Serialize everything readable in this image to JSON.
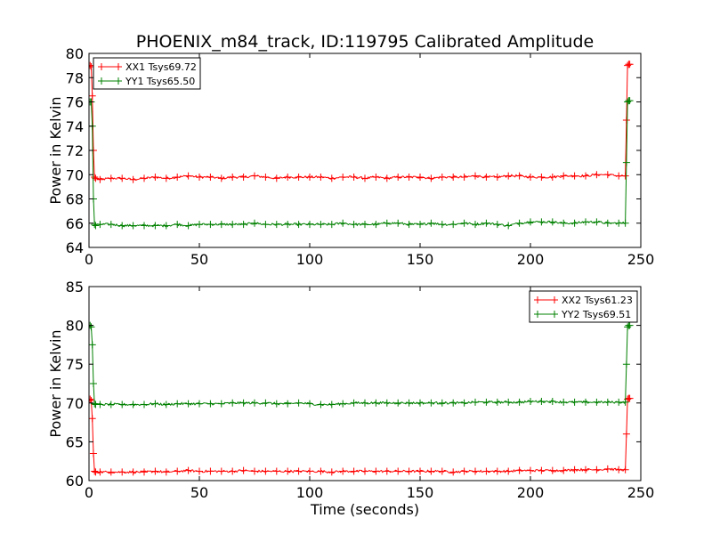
{
  "figure": {
    "title": "PHOENIX_m84_track, ID:119795 Calibrated Amplitude"
  },
  "chart_data": [
    {
      "type": "line",
      "title": "PHOENIX_m84_track, ID:119795 Calibrated Amplitude",
      "xlabel": "",
      "ylabel": "Power in Kelvin",
      "xlim": [
        0,
        250
      ],
      "ylim": [
        64,
        80
      ],
      "xticks": [
        "0",
        "50",
        "100",
        "150",
        "200",
        "250"
      ],
      "yticks": [
        "64",
        "66",
        "68",
        "70",
        "72",
        "74",
        "76",
        "78",
        "80"
      ],
      "xtick_values": [
        0,
        50,
        100,
        150,
        200,
        250
      ],
      "ytick_values": [
        64,
        66,
        68,
        70,
        72,
        74,
        76,
        78,
        80
      ],
      "grid": false,
      "legend_position": "top-left",
      "series": [
        {
          "name": "XX1 Tsys69.72",
          "color": "#ff0000",
          "marker": "plus",
          "x": [
            0,
            0.5,
            1,
            1.5,
            2,
            2.5,
            3,
            5,
            10,
            15,
            20,
            25,
            30,
            35,
            40,
            45,
            50,
            55,
            60,
            65,
            70,
            75,
            80,
            85,
            90,
            95,
            100,
            105,
            110,
            115,
            120,
            125,
            130,
            135,
            140,
            145,
            150,
            155,
            160,
            165,
            170,
            175,
            180,
            185,
            190,
            195,
            200,
            205,
            210,
            215,
            220,
            225,
            230,
            235,
            240,
            243,
            243.5,
            244,
            244.5,
            245
          ],
          "y": [
            78.9,
            79.0,
            78.9,
            76.5,
            72.0,
            69.8,
            69.7,
            69.6,
            69.7,
            69.7,
            69.6,
            69.7,
            69.8,
            69.7,
            69.8,
            69.9,
            69.8,
            69.8,
            69.7,
            69.8,
            69.8,
            69.9,
            69.8,
            69.7,
            69.8,
            69.8,
            69.8,
            69.8,
            69.7,
            69.8,
            69.8,
            69.7,
            69.8,
            69.7,
            69.8,
            69.8,
            69.8,
            69.7,
            69.8,
            69.8,
            69.8,
            69.9,
            69.8,
            69.8,
            69.9,
            69.9,
            69.8,
            69.8,
            69.8,
            69.9,
            69.9,
            69.9,
            70.0,
            70.0,
            69.9,
            69.9,
            74.5,
            79.0,
            79.1,
            79.1
          ]
        },
        {
          "name": "YY1 Tsys65.50",
          "color": "#008000",
          "marker": "plus",
          "x": [
            0,
            0.5,
            1,
            1.5,
            2,
            2.5,
            3,
            5,
            10,
            15,
            20,
            25,
            30,
            35,
            40,
            45,
            50,
            55,
            60,
            65,
            70,
            75,
            80,
            85,
            90,
            95,
            100,
            105,
            110,
            115,
            120,
            125,
            130,
            135,
            140,
            145,
            150,
            155,
            160,
            165,
            170,
            175,
            180,
            185,
            190,
            195,
            200,
            205,
            210,
            215,
            220,
            225,
            230,
            235,
            240,
            243,
            243.5,
            244,
            244.5,
            245
          ],
          "y": [
            76.0,
            76.0,
            76.0,
            74.0,
            68.0,
            65.9,
            65.8,
            65.9,
            65.9,
            65.8,
            65.8,
            65.8,
            65.8,
            65.8,
            65.9,
            65.8,
            65.9,
            65.9,
            65.9,
            65.9,
            65.9,
            66.0,
            65.9,
            65.9,
            65.9,
            65.9,
            65.9,
            65.9,
            65.9,
            66.0,
            65.9,
            65.9,
            65.9,
            66.0,
            66.0,
            65.9,
            65.9,
            66.0,
            65.9,
            65.9,
            66.0,
            65.9,
            66.0,
            65.9,
            65.8,
            66.0,
            66.1,
            66.1,
            66.1,
            66.0,
            66.0,
            66.1,
            66.1,
            66.0,
            66.0,
            66.0,
            71.0,
            76.0,
            76.1,
            76.1
          ]
        }
      ]
    },
    {
      "type": "line",
      "title": "",
      "xlabel": "Time (seconds)",
      "ylabel": "Power in Kelvin",
      "xlim": [
        0,
        250
      ],
      "ylim": [
        60,
        85
      ],
      "xticks": [
        "0",
        "50",
        "100",
        "150",
        "200",
        "250"
      ],
      "yticks": [
        "60",
        "65",
        "70",
        "75",
        "80",
        "85"
      ],
      "xtick_values": [
        0,
        50,
        100,
        150,
        200,
        250
      ],
      "ytick_values": [
        60,
        65,
        70,
        75,
        80,
        85
      ],
      "grid": false,
      "legend_position": "top-right",
      "series": [
        {
          "name": "XX2 Tsys61.23",
          "color": "#ff0000",
          "marker": "plus",
          "x": [
            0,
            0.5,
            1,
            1.5,
            2,
            2.5,
            3,
            5,
            10,
            15,
            20,
            25,
            30,
            35,
            40,
            45,
            50,
            55,
            60,
            65,
            70,
            75,
            80,
            85,
            90,
            95,
            100,
            105,
            110,
            115,
            120,
            125,
            130,
            135,
            140,
            145,
            150,
            155,
            160,
            165,
            170,
            175,
            180,
            185,
            190,
            195,
            200,
            205,
            210,
            215,
            220,
            225,
            230,
            235,
            240,
            243,
            243.5,
            244,
            244.5,
            245
          ],
          "y": [
            70.4,
            70.5,
            70.3,
            68.0,
            63.5,
            61.2,
            61.1,
            61.1,
            61.1,
            61.1,
            61.1,
            61.1,
            61.2,
            61.1,
            61.2,
            61.3,
            61.2,
            61.2,
            61.2,
            61.2,
            61.3,
            61.2,
            61.2,
            61.2,
            61.2,
            61.2,
            61.2,
            61.2,
            61.1,
            61.2,
            61.2,
            61.2,
            61.2,
            61.2,
            61.2,
            61.2,
            61.2,
            61.2,
            61.2,
            61.1,
            61.2,
            61.2,
            61.2,
            61.2,
            61.2,
            61.3,
            61.3,
            61.3,
            61.3,
            61.3,
            61.4,
            61.4,
            61.4,
            61.5,
            61.4,
            61.4,
            66.0,
            70.5,
            70.6,
            70.6
          ]
        },
        {
          "name": "YY2 Tsys69.51",
          "color": "#008000",
          "marker": "plus",
          "x": [
            0,
            0.5,
            1,
            1.5,
            2,
            2.5,
            3,
            5,
            10,
            15,
            20,
            25,
            30,
            35,
            40,
            45,
            50,
            55,
            60,
            65,
            70,
            75,
            80,
            85,
            90,
            95,
            100,
            105,
            110,
            115,
            120,
            125,
            130,
            135,
            140,
            145,
            150,
            155,
            160,
            165,
            170,
            175,
            180,
            185,
            190,
            195,
            200,
            205,
            210,
            215,
            220,
            225,
            230,
            235,
            240,
            243,
            243.5,
            244,
            244.5,
            245
          ],
          "y": [
            79.8,
            80.0,
            79.8,
            77.5,
            72.5,
            69.9,
            69.8,
            69.8,
            69.8,
            69.8,
            69.8,
            69.8,
            69.9,
            69.8,
            69.9,
            69.9,
            69.9,
            69.9,
            69.9,
            70.0,
            70.0,
            70.0,
            70.0,
            69.9,
            69.9,
            70.0,
            69.9,
            69.8,
            69.8,
            69.9,
            70.0,
            70.0,
            70.0,
            70.0,
            70.0,
            70.0,
            70.0,
            70.0,
            70.0,
            70.0,
            70.0,
            70.1,
            70.1,
            70.1,
            70.1,
            70.1,
            70.2,
            70.2,
            70.2,
            70.1,
            70.1,
            70.1,
            70.1,
            70.1,
            70.1,
            70.1,
            75.0,
            79.8,
            80.0,
            80.0
          ]
        }
      ]
    }
  ]
}
